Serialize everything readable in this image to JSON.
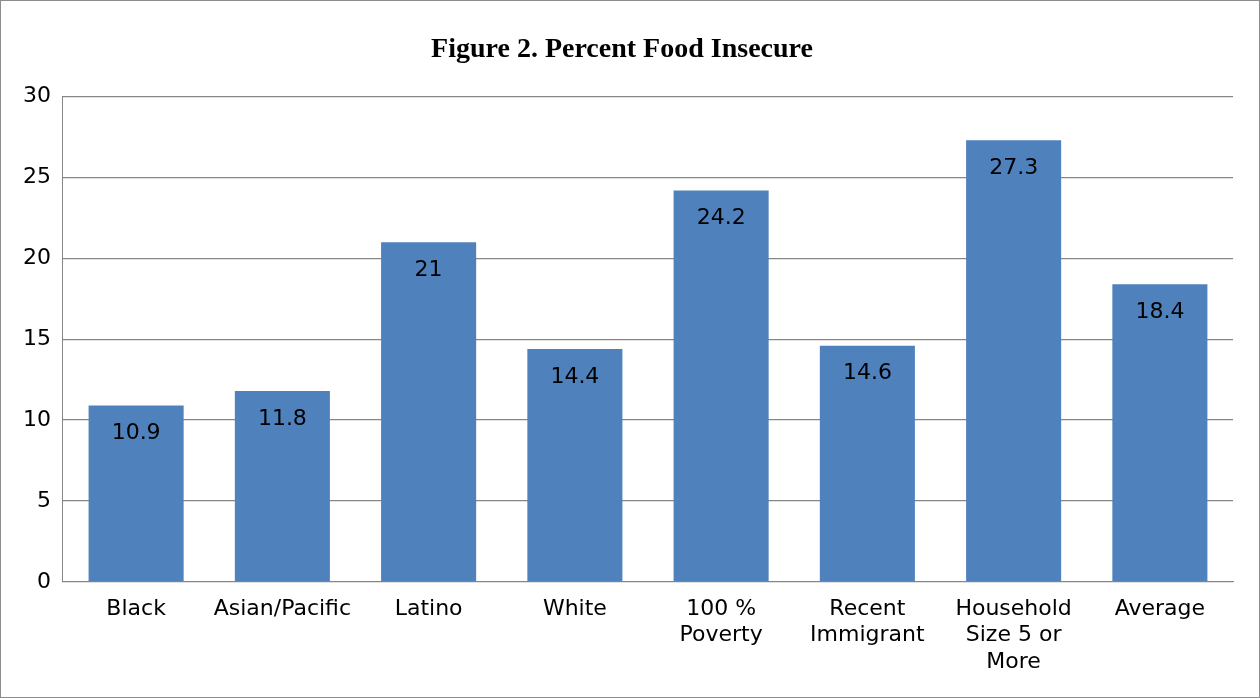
{
  "chart_data": {
    "type": "bar",
    "title": "Figure 2. Percent Food Insecure",
    "categories": [
      "Black",
      "Asian/Pacific",
      "Latino",
      "White",
      "100 % Poverty",
      "Recent Immigrant",
      "Household Size 5 or More",
      "Average"
    ],
    "values": [
      10.9,
      11.8,
      21,
      14.4,
      24.2,
      14.6,
      27.3,
      18.4
    ],
    "color": "#4f81bd",
    "ylim": [
      0,
      30
    ],
    "yticks": [
      0,
      5,
      10,
      15,
      20,
      25,
      30
    ],
    "grid": "y",
    "legend": false,
    "data_labels": true
  }
}
